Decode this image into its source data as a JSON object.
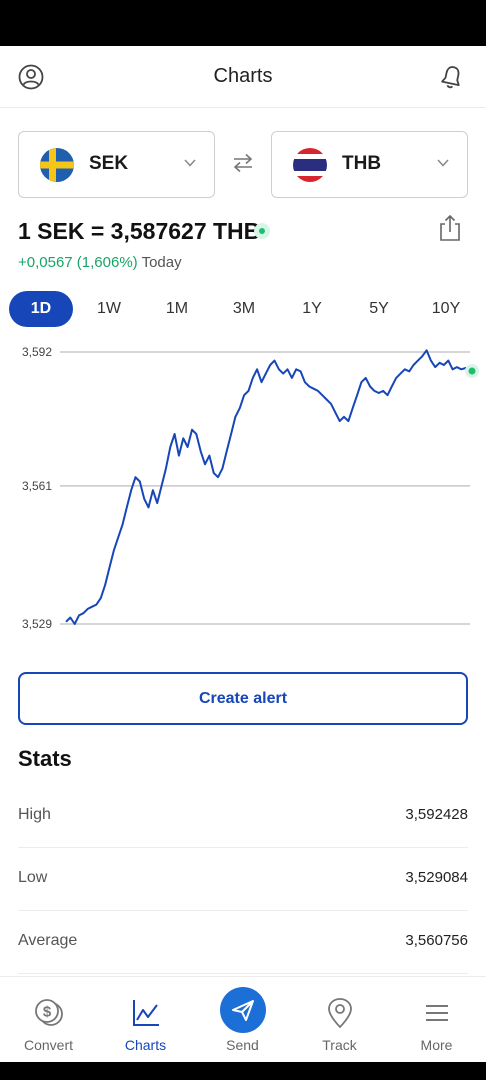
{
  "header": {
    "title": "Charts",
    "left_icon": "user-circle-icon",
    "right_icon": "bell-icon"
  },
  "currency": {
    "from": {
      "code": "SEK",
      "flag": "sweden-flag-icon"
    },
    "to": {
      "code": "THB",
      "flag": "thailand-flag-icon"
    },
    "swap_icon": "swap-arrows-icon"
  },
  "rate": {
    "text": "1 SEK = 3,587627 THB",
    "change": "+0,0567 (1,606%)",
    "period": "Today",
    "share_icon": "share-icon"
  },
  "ranges": [
    "1D",
    "1W",
    "1M",
    "3M",
    "1Y",
    "5Y",
    "10Y"
  ],
  "active_range": "1D",
  "chart_data": {
    "type": "line",
    "yticks": [
      "3,592",
      "3,561",
      "3,529"
    ],
    "ylim": [
      3.529,
      3.592
    ],
    "grid": true,
    "line_color": "#1646b8",
    "series": [
      {
        "values": [
          3.5295,
          3.5305,
          3.529,
          3.531,
          3.5315,
          3.5325,
          3.533,
          3.5335,
          3.535,
          3.538,
          3.542,
          3.546,
          3.549,
          3.552,
          3.556,
          3.56,
          3.563,
          3.562,
          3.558,
          3.556,
          3.56,
          3.557,
          3.561,
          3.565,
          3.57,
          3.573,
          3.568,
          3.572,
          3.57,
          3.574,
          3.573,
          3.569,
          3.566,
          3.568,
          3.564,
          3.563,
          3.565,
          3.569,
          3.573,
          3.577,
          3.579,
          3.582,
          3.583,
          3.586,
          3.588,
          3.585,
          3.587,
          3.589,
          3.59,
          3.588,
          3.587,
          3.588,
          3.586,
          3.588,
          3.5875,
          3.585,
          3.584,
          3.5835,
          3.583,
          3.582,
          3.581,
          3.58,
          3.578,
          3.576,
          3.577,
          3.576,
          3.579,
          3.582,
          3.585,
          3.586,
          3.584,
          3.583,
          3.5825,
          3.583,
          3.582,
          3.584,
          3.586,
          3.587,
          3.588,
          3.5875,
          3.589,
          3.59,
          3.591,
          3.5924,
          3.59,
          3.5885,
          3.5895,
          3.589,
          3.59,
          3.588,
          3.5885,
          3.588,
          3.5883,
          3.5876
        ]
      }
    ]
  },
  "alert_button": "Create alert",
  "stats": {
    "title": "Stats",
    "rows": [
      {
        "label": "High",
        "value": "3,592428"
      },
      {
        "label": "Low",
        "value": "3,529084"
      },
      {
        "label": "Average",
        "value": "3,560756"
      }
    ]
  },
  "tabs": [
    {
      "label": "Convert",
      "icon": "coins-icon"
    },
    {
      "label": "Charts",
      "icon": "line-chart-icon"
    },
    {
      "label": "Send",
      "icon": "paper-plane-icon"
    },
    {
      "label": "Track",
      "icon": "location-pin-icon"
    },
    {
      "label": "More",
      "icon": "menu-icon"
    }
  ],
  "active_tab": "Charts"
}
